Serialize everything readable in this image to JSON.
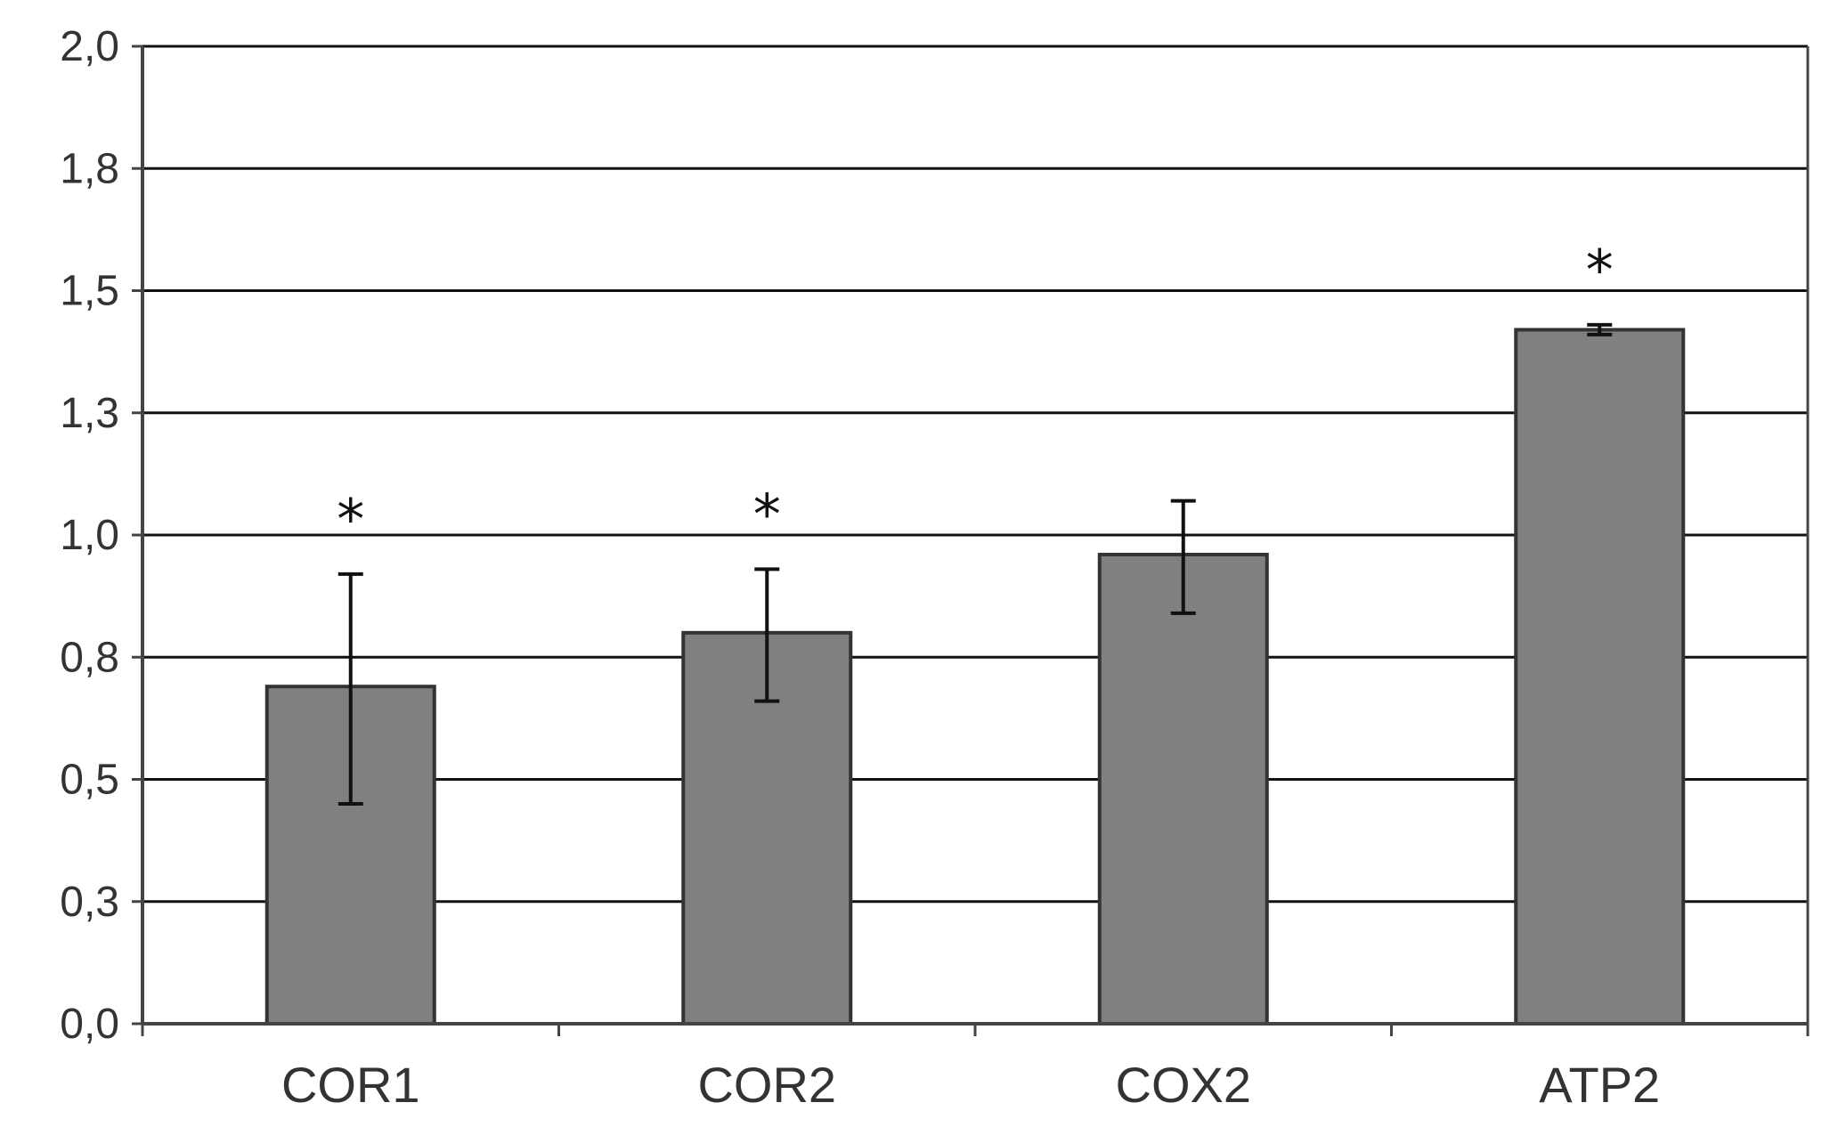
{
  "chart_data": {
    "type": "bar",
    "categories": [
      "COR1",
      "COR2",
      "COX2",
      "ATP2"
    ],
    "values": [
      0.69,
      0.8,
      0.96,
      1.42
    ],
    "error_low": [
      0.45,
      0.66,
      0.84,
      1.41
    ],
    "error_high": [
      0.92,
      0.93,
      1.07,
      1.43
    ],
    "significance": [
      "*",
      "*",
      "",
      "*"
    ],
    "yticks": [
      "0,0",
      "0,3",
      "0,5",
      "0,8",
      "1,0",
      "1,3",
      "1,5",
      "1,8",
      "2,0"
    ],
    "ylim": [
      0,
      2.0
    ],
    "grid": true,
    "colors": {
      "bar_fill": "#808080",
      "bar_stroke": "#333333",
      "grid": "#111111",
      "axis": "#444444",
      "error": "#111111"
    }
  }
}
